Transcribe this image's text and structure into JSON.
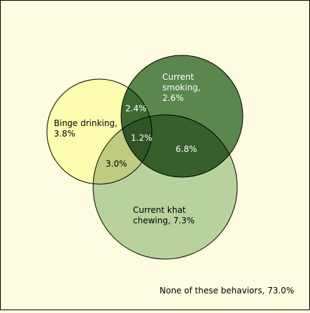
{
  "venn": {
    "sets": {
      "binge": {
        "label_line1": "Binge drinking,",
        "label_line2": "3.8%"
      },
      "smoking": {
        "label_line1": "Current",
        "label_line2": "smoking,",
        "label_line3": "2.6%"
      },
      "khat": {
        "label_line1": "Current khat",
        "label_line2": "chewing, 7.3%"
      }
    },
    "overlaps": {
      "binge_smoking": "2.4%",
      "all_three": "1.2%",
      "smoking_khat": "6.8%",
      "binge_khat": "3.0%"
    },
    "none_label": "None of these behaviors, 73.0%"
  },
  "colors": {
    "background": "#fdfbe0",
    "binge_only": "#fdfdaf",
    "smoking": "#5b864e",
    "khat": "#b9d29d",
    "binge_khat": "#bfcb7e",
    "smoking_khat": "#365f2b",
    "binge_smoking": "#3e6a31",
    "all_three": "#2f5526",
    "outline": "#000000"
  }
}
